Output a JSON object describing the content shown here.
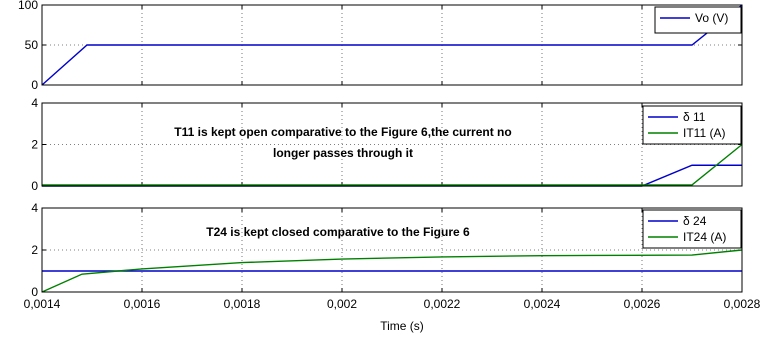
{
  "chart_data": [
    {
      "type": "line",
      "xlim": [
        0.0014,
        0.0028
      ],
      "ylim": [
        0,
        100
      ],
      "yticks": [
        "0",
        "50",
        "100"
      ],
      "grid": true,
      "legend_position": "top-right",
      "colors": {
        "Vo (V)": "#0000cc"
      },
      "series": [
        {
          "name": "Vo (V)",
          "x": [
            0.0014,
            0.00149,
            0.0027,
            0.0028
          ],
          "y": [
            0,
            50,
            50,
            100
          ]
        }
      ]
    },
    {
      "type": "line",
      "xlim": [
        0.0014,
        0.0028
      ],
      "ylim": [
        0,
        4
      ],
      "yticks": [
        "0",
        "2",
        "4"
      ],
      "grid": true,
      "legend_position": "top-right",
      "annotation": [
        "T11 is kept open comparative to the Figure 6,the current no",
        "longer passes through it"
      ],
      "colors": {
        "δ 11": "#0000cc",
        "IT11 (A)": "#008000"
      },
      "series": [
        {
          "name": "δ 11",
          "x": [
            0.0014,
            0.0026,
            0.0027,
            0.0028
          ],
          "y": [
            0,
            0,
            1,
            1
          ]
        },
        {
          "name": "IT11 (A)",
          "x": [
            0.0014,
            0.0027,
            0.0028
          ],
          "y": [
            0.05,
            0.05,
            2
          ]
        }
      ]
    },
    {
      "type": "line",
      "xlim": [
        0.0014,
        0.0028
      ],
      "ylim": [
        0,
        4
      ],
      "yticks": [
        "0",
        "2",
        "4"
      ],
      "xticks": [
        "0,0014",
        "0,0016",
        "0,0018",
        "0,002",
        "0,0022",
        "0,0024",
        "0,0026",
        "0,0028"
      ],
      "xlabel": "Time (s)",
      "grid": true,
      "legend_position": "top-right",
      "annotation": [
        "T24 is kept closed comparative to the Figure 6"
      ],
      "colors": {
        "δ 24": "#0000cc",
        "IT24 (A)": "#008000"
      },
      "series": [
        {
          "name": "δ 24",
          "x": [
            0.0014,
            0.0028
          ],
          "y": [
            1,
            1
          ]
        },
        {
          "name": "IT24 (A)",
          "x": [
            0.0014,
            0.00148,
            0.0016,
            0.0018,
            0.002,
            0.0022,
            0.0024,
            0.0025,
            0.0027,
            0.0028
          ],
          "y": [
            0,
            0.85,
            1.1,
            1.4,
            1.57,
            1.67,
            1.73,
            1.74,
            1.76,
            2
          ]
        }
      ]
    }
  ]
}
